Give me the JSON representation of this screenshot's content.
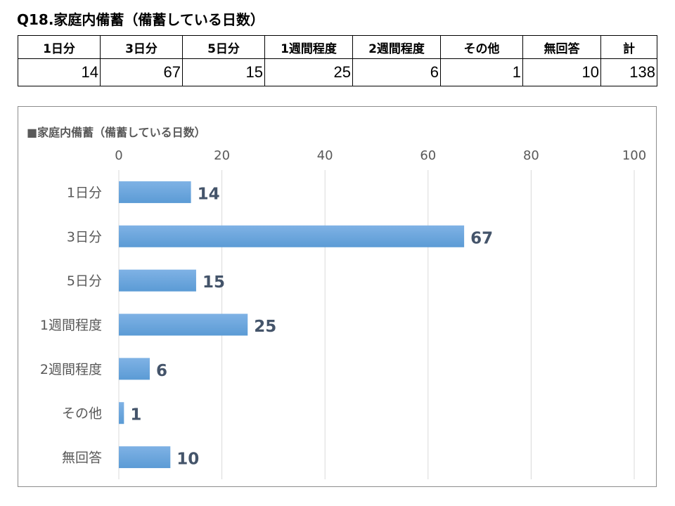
{
  "page": {
    "title": "Q18.家庭内備蓄（備蓄している日数）"
  },
  "table": {
    "headers": [
      "1日分",
      "3日分",
      "5日分",
      "1週間程度",
      "2週間程度",
      "その他",
      "無回答",
      "計"
    ],
    "values": [
      "14",
      "67",
      "15",
      "25",
      "6",
      "1",
      "10",
      "138"
    ]
  },
  "colors": {
    "bar": "#5b9bd5",
    "bar_light": "#7fb2e5",
    "gridline": "#d9d9d9",
    "data_label": "#44546a"
  },
  "chart_data": {
    "type": "bar",
    "orientation": "horizontal",
    "title": "■家庭内備蓄（備蓄している日数）",
    "categories": [
      "1日分",
      "3日分",
      "5日分",
      "1週間程度",
      "2週間程度",
      "その他",
      "無回答"
    ],
    "values": [
      14,
      67,
      15,
      25,
      6,
      1,
      10
    ],
    "data_labels": [
      "14",
      "67",
      "15",
      "25",
      "6",
      "1",
      "10"
    ],
    "xlim": [
      0,
      100
    ],
    "x_ticks": [
      "0",
      "20",
      "40",
      "60",
      "80",
      "100"
    ],
    "x_axis_position": "top",
    "grid": true,
    "legend": "none"
  }
}
